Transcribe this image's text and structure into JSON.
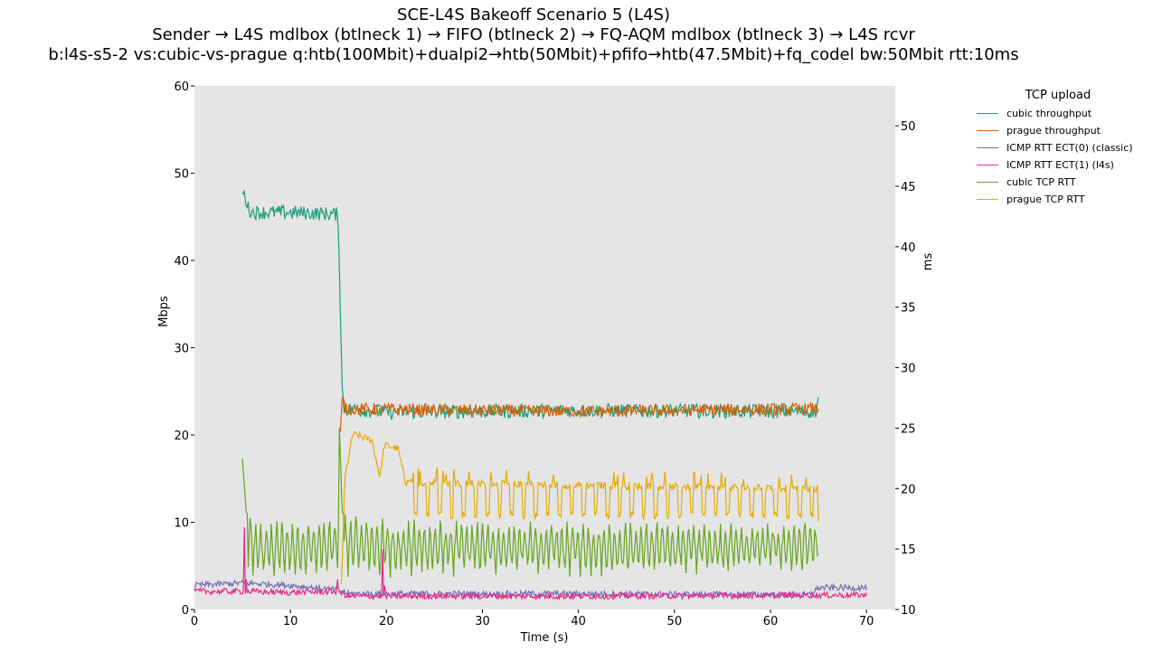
{
  "chart_data": {
    "type": "line",
    "title": "SCE-L4S Bakeoff Scenario 5 (L4S)",
    "subtitle_1": "Sender → L4S mdlbox (btlneck 1) → FIFO (btlneck 2) → FQ-AQM mdlbox (btlneck 3) → L4S rcvr",
    "subtitle_2": "b:l4s-s5-2 vs:cubic-vs-prague q:htb(100Mbit)+dualpi2→htb(50Mbit)+pfifo→htb(47.5Mbit)+fq_codel bw:50Mbit rtt:10ms",
    "xlabel": "Time (s)",
    "ylabel_left": "Mbps",
    "ylabel_right": "ms",
    "xlim": [
      0,
      73
    ],
    "ylim_left": [
      0,
      60
    ],
    "ylim_right": [
      10,
      53.3
    ],
    "x_ticks": [
      "0",
      "10",
      "20",
      "30",
      "40",
      "50",
      "60",
      "70"
    ],
    "y_ticks_left": [
      "0",
      "10",
      "20",
      "30",
      "40",
      "50",
      "60"
    ],
    "y_ticks_right": [
      "10",
      "15",
      "20",
      "25",
      "30",
      "35",
      "40",
      "45",
      "50"
    ],
    "grid": false,
    "background": "#e5e5e5",
    "legend": {
      "title": "TCP upload",
      "placement": "outside-right",
      "entries": [
        "cubic throughput",
        "prague throughput",
        "ICMP RTT ECT(0) (classic)",
        "ICMP RTT ECT(1) (l4s)",
        "cubic TCP RTT",
        "prague TCP RTT"
      ]
    },
    "series": [
      {
        "name": "cubic throughput",
        "axis": "left",
        "color": "#1b9e77",
        "style": "noisy",
        "noise": 0.8,
        "t_start": 5.0,
        "t_end": 65.0,
        "points": [
          [
            5.0,
            47.8
          ],
          [
            5.3,
            47.3
          ],
          [
            5.6,
            46.0
          ],
          [
            6.0,
            45.5
          ],
          [
            10.0,
            45.5
          ],
          [
            14.8,
            45.3
          ],
          [
            15.0,
            44.0
          ],
          [
            15.4,
            25.0
          ],
          [
            15.6,
            23.0
          ],
          [
            20.0,
            22.6
          ],
          [
            40.0,
            22.8
          ],
          [
            64.8,
            22.7
          ],
          [
            65.0,
            24.5
          ]
        ]
      },
      {
        "name": "prague throughput",
        "axis": "left",
        "color": "#d95f02",
        "style": "noisy",
        "noise": 0.7,
        "t_start": 15.2,
        "t_end": 65.0,
        "points": [
          [
            15.2,
            20.0
          ],
          [
            15.4,
            24.0
          ],
          [
            15.8,
            23.0
          ],
          [
            40.0,
            22.7
          ],
          [
            65.0,
            23.0
          ]
        ]
      },
      {
        "name": "ICMP RTT ECT(0) (classic)",
        "axis": "right",
        "color": "#7570b3",
        "style": "noisy",
        "noise": 0.25,
        "t_start": 0.0,
        "t_end": 70.0,
        "points": [
          [
            0.0,
            12.0
          ],
          [
            5.0,
            12.2
          ],
          [
            10.0,
            12.0
          ],
          [
            15.0,
            11.6
          ],
          [
            16.0,
            11.3
          ],
          [
            40.0,
            11.3
          ],
          [
            64.0,
            11.2
          ],
          [
            65.0,
            11.8
          ],
          [
            70.0,
            11.8
          ]
        ]
      },
      {
        "name": "ICMP RTT ECT(1) (l4s)",
        "axis": "right",
        "color": "#e7298a",
        "style": "noisy",
        "noise": 0.25,
        "t_start": 0.0,
        "t_end": 70.0,
        "points": [
          [
            0.0,
            11.5
          ],
          [
            5.0,
            11.5
          ],
          [
            10.0,
            11.4
          ],
          [
            15.0,
            11.5
          ],
          [
            16.0,
            11.1
          ],
          [
            40.0,
            11.1
          ],
          [
            70.0,
            11.2
          ]
        ],
        "spikes": [
          [
            5.2,
            16.8
          ],
          [
            5.4,
            12.5
          ],
          [
            14.9,
            12.5
          ],
          [
            19.6,
            15.0
          ],
          [
            19.8,
            12.0
          ]
        ]
      },
      {
        "name": "cubic TCP RTT",
        "axis": "right",
        "color": "#66a61e",
        "style": "oscillating",
        "period": 0.55,
        "t_start": 5.0,
        "t_end": 65.0,
        "points": [
          [
            5.0,
            22.5
          ],
          [
            5.4,
            18.0
          ],
          [
            7.0,
            17.0
          ],
          [
            14.8,
            17.5
          ],
          [
            15.1,
            25.0
          ],
          [
            15.4,
            18.0
          ],
          [
            20.0,
            17.3
          ],
          [
            40.0,
            17.0
          ],
          [
            65.0,
            17.0
          ]
        ],
        "low": [
          [
            5.0,
            13.0
          ],
          [
            15.0,
            13.0
          ],
          [
            16.0,
            13.0
          ],
          [
            65.0,
            13.5
          ]
        ]
      },
      {
        "name": "prague TCP RTT",
        "axis": "right",
        "color": "#e6ab02",
        "style": "pulsed",
        "period": 1.25,
        "noise": 0.3,
        "t_start": 15.3,
        "t_end": 65.0,
        "points": [
          [
            15.3,
            12.0
          ],
          [
            15.7,
            21.0
          ],
          [
            16.5,
            24.5
          ],
          [
            18.5,
            24.0
          ],
          [
            19.3,
            21.0
          ],
          [
            19.8,
            23.6
          ],
          [
            21.2,
            23.3
          ],
          [
            22.0,
            20.5
          ],
          [
            65.0,
            20.0
          ],
          [
            65.0,
            17.5
          ]
        ],
        "low": [
          [
            22.0,
            17.8
          ],
          [
            65.0,
            17.8
          ]
        ]
      }
    ]
  }
}
